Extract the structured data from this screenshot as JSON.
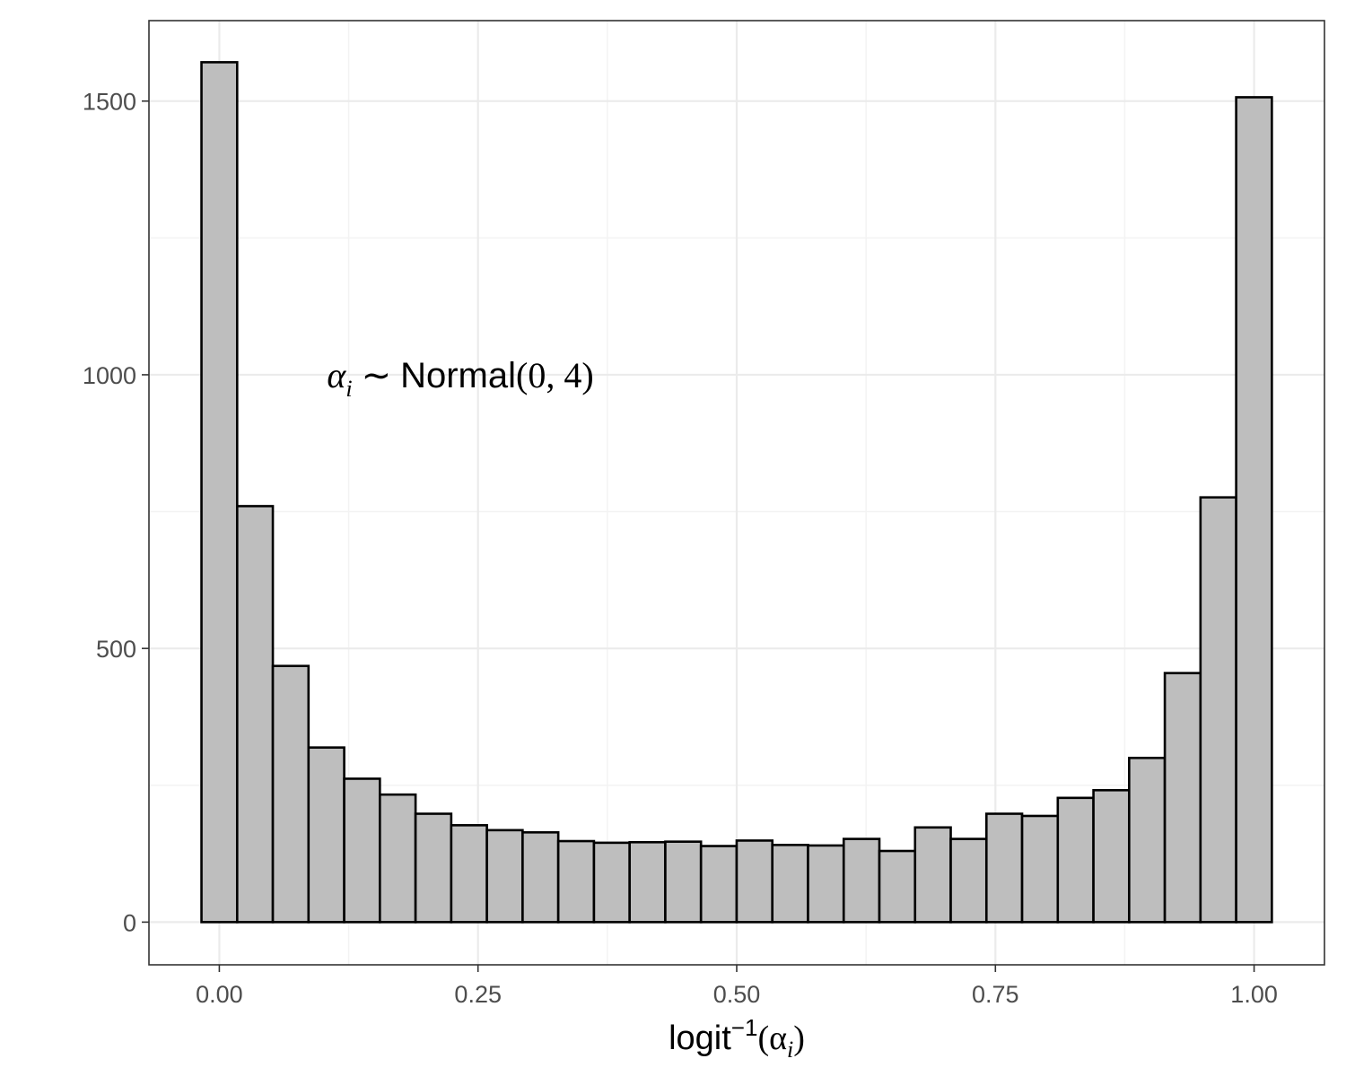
{
  "chart_data": {
    "type": "bar",
    "subtype": "histogram",
    "title": "",
    "xlabel": {
      "text": "logit",
      "superscript": "−1",
      "argument": "(α",
      "argument_sub": "i",
      "argument_close": ")"
    },
    "ylabel": "",
    "xlim": [
      -0.068,
      1.068
    ],
    "ylim": [
      -78,
      1647
    ],
    "x_ticks": [
      0.0,
      0.25,
      0.5,
      0.75,
      1.0
    ],
    "x_tick_labels": [
      "0.00",
      "0.25",
      "0.50",
      "0.75",
      "1.00"
    ],
    "x_minor_ticks": [
      0.125,
      0.375,
      0.625,
      0.875
    ],
    "y_ticks": [
      0,
      500,
      1000,
      1500
    ],
    "y_tick_labels": [
      "0",
      "500",
      "1000",
      "1500"
    ],
    "y_minor_ticks": [
      250,
      750,
      1250
    ],
    "bin_width": 0.03448,
    "bin_start": -0.01724,
    "values": [
      1571,
      760,
      468,
      319,
      262,
      233,
      198,
      177,
      168,
      164,
      148,
      145,
      146,
      147,
      139,
      149,
      141,
      140,
      152,
      130,
      173,
      152,
      198,
      194,
      227,
      241,
      300,
      455,
      776,
      1507
    ],
    "annotation": {
      "alpha": "α",
      "sub": "i",
      "tilde": "∼",
      "dist": "Normal",
      "params": "(0, 4)",
      "x": 0.104,
      "y": 1000
    },
    "grid": true,
    "theme": "bw",
    "colors": {
      "bar_fill": "#bebebe",
      "bar_stroke": "#000000",
      "grid_major": "#ebebeb",
      "grid_minor": "#f3f3f3",
      "panel_border": "#333333",
      "tick_text": "#4d4d4d"
    }
  }
}
